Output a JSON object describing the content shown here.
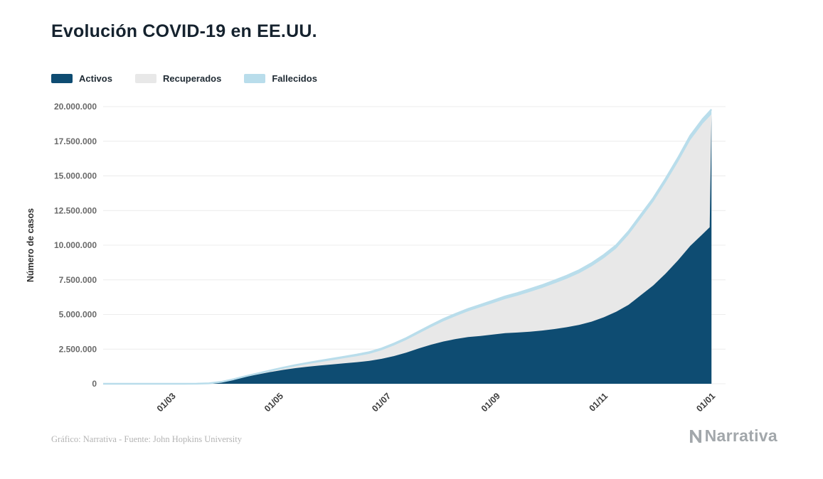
{
  "header": {
    "title": "Evolución COVID-19 en EE.UU."
  },
  "chart_data": {
    "type": "area",
    "stacked": true,
    "title": "Evolución COVID-19 en EE.UU.",
    "xlabel": "",
    "ylabel": "Número de casos",
    "ylim": [
      0,
      20000000
    ],
    "grid": "horizontal",
    "legend_position": "top-left",
    "series": [
      {
        "name": "Activos",
        "color": "#0e4c72"
      },
      {
        "name": "Recuperados",
        "color": "#e8e8e8"
      },
      {
        "name": "Fallecidos",
        "color": "#b9ddeb"
      }
    ],
    "y_ticks": [
      {
        "value": 0,
        "label": "0"
      },
      {
        "value": 2500000,
        "label": "2.500.000"
      },
      {
        "value": 5000000,
        "label": "5.000.000"
      },
      {
        "value": 7500000,
        "label": "7.500.000"
      },
      {
        "value": 10000000,
        "label": "10.000.000"
      },
      {
        "value": 12500000,
        "label": "12.500.000"
      },
      {
        "value": 15000000,
        "label": "15.000.000"
      },
      {
        "value": 17500000,
        "label": "17.500.000"
      },
      {
        "value": 20000000,
        "label": "20.000.000"
      }
    ],
    "x_ticks": [
      {
        "day": 39,
        "label": "01/03"
      },
      {
        "day": 100,
        "label": "01/05"
      },
      {
        "day": 161,
        "label": "01/07"
      },
      {
        "day": 223,
        "label": "01/09"
      },
      {
        "day": 284,
        "label": "01/11"
      },
      {
        "day": 345,
        "label": "01/01"
      }
    ],
    "x_domain_days": [
      0,
      353
    ],
    "point_columns": [
      "day_index",
      "activos",
      "recuperados",
      "fallecidos"
    ],
    "points": [
      [
        0,
        0,
        0,
        0
      ],
      [
        30,
        10,
        0,
        0
      ],
      [
        39,
        68,
        6,
        1
      ],
      [
        46,
        480,
        0,
        20
      ],
      [
        53,
        3400,
        40,
        60
      ],
      [
        60,
        32000,
        600,
        400
      ],
      [
        67,
        135000,
        2600,
        2400
      ],
      [
        74,
        310000,
        10500,
        9500
      ],
      [
        81,
        510000,
        23000,
        22000
      ],
      [
        88,
        680000,
        40000,
        40000
      ],
      [
        95,
        850000,
        60000,
        55000
      ],
      [
        102,
        1000000,
        93000,
        67000
      ],
      [
        109,
        1130000,
        141000,
        79000
      ],
      [
        116,
        1230000,
        190000,
        90000
      ],
      [
        123,
        1320000,
        243000,
        97000
      ],
      [
        130,
        1400000,
        306000,
        104000
      ],
      [
        137,
        1480000,
        370000,
        110000
      ],
      [
        144,
        1560000,
        434000,
        116000
      ],
      [
        151,
        1650000,
        510000,
        120000
      ],
      [
        158,
        1800000,
        625000,
        125000
      ],
      [
        165,
        2000000,
        770000,
        130000
      ],
      [
        172,
        2250000,
        915000,
        135000
      ],
      [
        179,
        2550000,
        1080000,
        140000
      ],
      [
        186,
        2820000,
        1263000,
        147000
      ],
      [
        193,
        3050000,
        1465000,
        155000
      ],
      [
        200,
        3230000,
        1658000,
        162000
      ],
      [
        207,
        3370000,
        1860000,
        170000
      ],
      [
        214,
        3450000,
        2074000,
        176000
      ],
      [
        221,
        3550000,
        2267000,
        183000
      ],
      [
        228,
        3650000,
        2461000,
        189000
      ],
      [
        235,
        3700000,
        2656000,
        194000
      ],
      [
        242,
        3760000,
        2871000,
        199000
      ],
      [
        249,
        3840000,
        3076000,
        204000
      ],
      [
        256,
        3950000,
        3290000,
        210000
      ],
      [
        263,
        4080000,
        3505000,
        215000
      ],
      [
        270,
        4250000,
        3730000,
        220000
      ],
      [
        277,
        4480000,
        3994000,
        226000
      ],
      [
        284,
        4800000,
        4269000,
        231000
      ],
      [
        291,
        5200000,
        4562000,
        238000
      ],
      [
        298,
        5700000,
        5054000,
        246000
      ],
      [
        305,
        6400000,
        5544000,
        256000
      ],
      [
        312,
        7100000,
        6033000,
        267000
      ],
      [
        319,
        7950000,
        6569000,
        281000
      ],
      [
        326,
        8900000,
        7102000,
        298000
      ],
      [
        333,
        9950000,
        7633000,
        317000
      ],
      [
        340,
        10800000,
        7967000,
        333000
      ],
      [
        344,
        11300000,
        8006000,
        344000
      ],
      [
        345,
        19400000,
        50000,
        350000
      ]
    ]
  },
  "footer": {
    "credit": "Gráfico: Narrativa - Fuente: John Hopkins University",
    "brand": "Narrativa"
  }
}
